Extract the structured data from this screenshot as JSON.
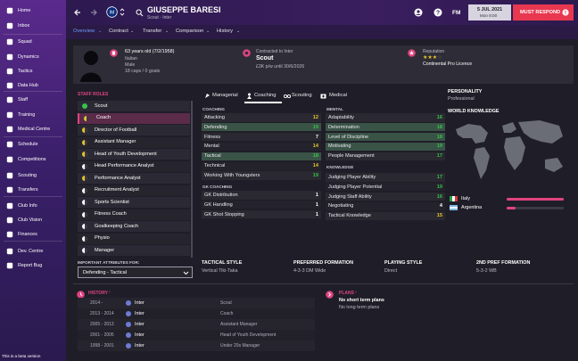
{
  "sidebar": {
    "items": [
      {
        "label": "Home",
        "icon": "home-icon"
      },
      {
        "label": "Inbox",
        "icon": "inbox-icon"
      },
      {
        "label": "Squad",
        "icon": "squad-icon"
      },
      {
        "label": "Dynamics",
        "icon": "dynamics-icon"
      },
      {
        "label": "Tactics",
        "icon": "tactics-icon"
      },
      {
        "label": "Data Hub",
        "icon": "data-hub-icon"
      },
      {
        "label": "Staff",
        "icon": "staff-icon"
      },
      {
        "label": "Training",
        "icon": "training-icon"
      },
      {
        "label": "Medical Centre",
        "icon": "medical-icon"
      },
      {
        "label": "Schedule",
        "icon": "schedule-icon"
      },
      {
        "label": "Competitions",
        "icon": "competitions-icon"
      },
      {
        "label": "Scouting",
        "icon": "scouting-icon"
      },
      {
        "label": "Transfers",
        "icon": "transfers-icon"
      },
      {
        "label": "Club Info",
        "icon": "club-info-icon"
      },
      {
        "label": "Club Vision",
        "icon": "club-vision-icon"
      },
      {
        "label": "Finances",
        "icon": "finances-icon"
      },
      {
        "label": "Dev. Centre",
        "icon": "dev-centre-icon"
      },
      {
        "label": "Report Bug",
        "icon": "report-bug-icon"
      }
    ],
    "beta_text": "This is a beta version"
  },
  "topbar": {
    "name": "GIUSEPPE BARESI",
    "subtitle": "Scout - Inter",
    "initials": "FM",
    "date": "5 JUL 2021",
    "day_time": "Mon 8:00",
    "must_respond": "MUST RESPOND"
  },
  "subnav": {
    "tabs": [
      "Overview",
      "Contract",
      "Transfer",
      "Comparison",
      "History"
    ]
  },
  "profile": {
    "age_line": "63 years old (7/2/1958)",
    "nationality": "Italian",
    "gender": "Male",
    "caps": "18 caps / 0 goals",
    "contract_label": "Contracted to Inter",
    "role": "Scout",
    "wage": "£3K p/w until 30/6/2026",
    "reputation_label": "Reputation",
    "reputation_stars": 3.5,
    "licence": "Continental Pro Licence"
  },
  "staff_roles": {
    "title": "STAFF ROLES",
    "items": [
      {
        "label": "Scout",
        "color": "#37c24a",
        "full": true
      },
      {
        "label": "Coach",
        "color": "#e6c42a",
        "full": false
      },
      {
        "label": "Director of Football",
        "color": "#e6c42a",
        "full": false
      },
      {
        "label": "Assistant Manager",
        "color": "#e6c42a",
        "full": false
      },
      {
        "label": "Head of Youth Development",
        "color": "#e6c42a",
        "full": false
      },
      {
        "label": "Head Performance Analyst",
        "color": "#ffffff",
        "full": false
      },
      {
        "label": "Performance Analyst",
        "color": "#e6c42a",
        "full": false
      },
      {
        "label": "Recruitment Analyst",
        "color": "#ffffff",
        "full": false
      },
      {
        "label": "Sports Scientist",
        "color": "#ffffff",
        "full": false
      },
      {
        "label": "Fitness Coach",
        "color": "#ffffff",
        "full": false
      },
      {
        "label": "Goalkeeping Coach",
        "color": "#ffffff",
        "full": false
      },
      {
        "label": "Physio",
        "color": "#ffffff",
        "full": false
      },
      {
        "label": "Manager",
        "color": "#ffffff",
        "full": false
      }
    ],
    "important_label": "IMPORTANT ATTRIBUTES FOR:",
    "dropdown_value": "Defending - Tactical"
  },
  "attr_tabs": [
    "Managerial",
    "Coaching",
    "Scouting",
    "Medical"
  ],
  "coaching": {
    "title": "COACHING",
    "rows": [
      {
        "label": "Attacking",
        "value": "12",
        "hl": false
      },
      {
        "label": "Defending",
        "value": "19",
        "hl": true
      },
      {
        "label": "Fitness",
        "value": "7",
        "hl": false
      },
      {
        "label": "Mental",
        "value": "14",
        "hl": false
      },
      {
        "label": "Tactical",
        "value": "18",
        "hl": true
      },
      {
        "label": "Technical",
        "value": "14",
        "hl": false
      },
      {
        "label": "Working With Youngsters",
        "value": "19",
        "hl": false
      }
    ]
  },
  "gk_coaching": {
    "title": "GK COACHING",
    "rows": [
      {
        "label": "GK Distribution",
        "value": "1"
      },
      {
        "label": "GK Handling",
        "value": "1"
      },
      {
        "label": "GK Shot Stopping",
        "value": "1"
      }
    ]
  },
  "mental": {
    "title": "MENTAL",
    "rows": [
      {
        "label": "Adaptability",
        "value": "16",
        "hl": false
      },
      {
        "label": "Determination",
        "value": "18",
        "hl": true
      },
      {
        "label": "Level of Discipline",
        "value": "18",
        "hl": true
      },
      {
        "label": "Motivating",
        "value": "19",
        "hl": true
      },
      {
        "label": "People Management",
        "value": "17",
        "hl": false
      }
    ]
  },
  "knowledge": {
    "title": "KNOWLEDGE",
    "rows": [
      {
        "label": "Judging Player Ability",
        "value": "17"
      },
      {
        "label": "Judging Player Potential",
        "value": "19"
      },
      {
        "label": "Judging Staff Ability",
        "value": "16"
      },
      {
        "label": "Negotiating",
        "value": "4"
      },
      {
        "label": "Tactical Knowledge",
        "value": "15"
      }
    ]
  },
  "personality": {
    "title": "PERSONALITY",
    "value": "Professional",
    "world_title": "WORLD KNOWLEDGE",
    "countries": [
      {
        "name": "Italy",
        "level": 1.0
      },
      {
        "name": "Argentina",
        "level": 0.15
      }
    ]
  },
  "tactical": {
    "style_label": "TACTICAL STYLE",
    "style_value": "Vertical Tiki-Taka",
    "pref_label": "PREFERRED FORMATION",
    "pref_value": "4-3-3 DM Wide",
    "play_label": "PLAYING STYLE",
    "play_value": "Direct",
    "second_label": "2ND PREF FORMATION",
    "second_value": "5-3-2 WB"
  },
  "history": {
    "title": "HISTORY",
    "rows": [
      {
        "years": "2014 -",
        "club": "Inter",
        "role": "Scout"
      },
      {
        "years": "2013 - 2014",
        "club": "Inter",
        "role": "Coach"
      },
      {
        "years": "2005 - 2013",
        "club": "Inter",
        "role": "Assistant Manager"
      },
      {
        "years": "2001 - 2005",
        "club": "Inter",
        "role": "Head of Youth Development"
      },
      {
        "years": "1998 - 2001",
        "club": "Inter",
        "role": "Under 20s Manager"
      }
    ]
  },
  "plans": {
    "title": "PLANS",
    "line1": "No short term plans",
    "line2": "No long term plans"
  },
  "colors": {
    "accent": "#e0447e",
    "green": "#37c24a",
    "yellow": "#e6c42a",
    "cyan_hl": "#3e5a4d",
    "must_respond": "#e8384f"
  }
}
